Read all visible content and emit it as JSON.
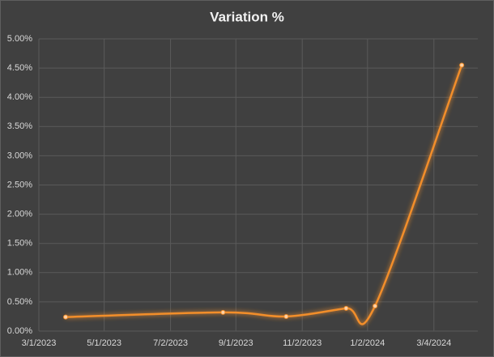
{
  "chart_data": {
    "type": "line",
    "title": "Variation %",
    "x": [
      "3/26/2023",
      "8/20/2023",
      "10/18/2023",
      "12/13/2023",
      "1/9/2024",
      "3/30/2024"
    ],
    "values": [
      0.24,
      0.32,
      0.25,
      0.39,
      0.43,
      4.55
    ],
    "color": "#f28e2b",
    "smooth": true,
    "xlim": [
      "3/1/2023",
      "4/14/2024"
    ],
    "xticks": [
      "3/1/2023",
      "5/1/2023",
      "7/2/2023",
      "9/1/2023",
      "11/2/2023",
      "1/2/2024",
      "3/4/2024"
    ],
    "ylim": [
      0,
      5
    ],
    "yticks": [
      {
        "value": 0,
        "label": "0.00%"
      },
      {
        "value": 0.5,
        "label": "0.50%"
      },
      {
        "value": 1,
        "label": "1.00%"
      },
      {
        "value": 1.5,
        "label": "1.50%"
      },
      {
        "value": 2,
        "label": "2.00%"
      },
      {
        "value": 2.5,
        "label": "2.50%"
      },
      {
        "value": 3,
        "label": "3.00%"
      },
      {
        "value": 3.5,
        "label": "3.50%"
      },
      {
        "value": 4,
        "label": "4.00%"
      },
      {
        "value": 4.5,
        "label": "4.50%"
      },
      {
        "value": 5,
        "label": "5.00%"
      }
    ],
    "grid": true
  }
}
